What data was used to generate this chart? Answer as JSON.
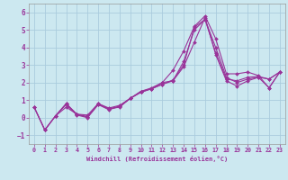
{
  "xlabel": "Windchill (Refroidissement éolien,°C)",
  "background_color": "#cce8f0",
  "grid_color": "#aaccdd",
  "line_color": "#993399",
  "xlim": [
    -0.5,
    23.5
  ],
  "ylim": [
    -1.5,
    6.5
  ],
  "yticks": [
    -1,
    0,
    1,
    2,
    3,
    4,
    5,
    6
  ],
  "xticks": [
    0,
    1,
    2,
    3,
    4,
    5,
    6,
    7,
    8,
    9,
    10,
    11,
    12,
    13,
    14,
    15,
    16,
    17,
    18,
    19,
    20,
    21,
    22,
    23
  ],
  "lines": [
    {
      "x": [
        0,
        1,
        2,
        3,
        4,
        5,
        6,
        7,
        8,
        9,
        10,
        11,
        12,
        13,
        14,
        15,
        16,
        17,
        18,
        19,
        20,
        21,
        22,
        23
      ],
      "y": [
        0.6,
        -0.7,
        0.1,
        0.8,
        0.2,
        0.05,
        0.8,
        0.5,
        0.6,
        1.1,
        1.5,
        1.7,
        2.0,
        2.7,
        3.8,
        5.2,
        5.8,
        4.5,
        2.5,
        2.5,
        2.6,
        2.4,
        1.7,
        2.6
      ]
    },
    {
      "x": [
        0,
        1,
        2,
        3,
        4,
        5,
        6,
        7,
        8,
        9,
        10,
        11,
        12,
        13,
        14,
        15,
        16,
        17,
        18,
        19,
        20,
        21,
        22,
        23
      ],
      "y": [
        0.6,
        -0.7,
        0.1,
        0.75,
        0.15,
        0.0,
        0.75,
        0.45,
        0.65,
        1.1,
        1.45,
        1.65,
        1.9,
        2.15,
        3.0,
        5.15,
        5.6,
        3.7,
        2.2,
        2.1,
        2.3,
        2.35,
        2.2,
        2.6
      ]
    },
    {
      "x": [
        0,
        1,
        2,
        3,
        4,
        5,
        6,
        7,
        8,
        9,
        10,
        11,
        12,
        13,
        14,
        15,
        16,
        17,
        18,
        19,
        20,
        21,
        22,
        23
      ],
      "y": [
        0.6,
        -0.7,
        0.1,
        0.8,
        0.18,
        0.05,
        0.75,
        0.5,
        0.65,
        1.1,
        1.5,
        1.65,
        2.0,
        2.1,
        3.2,
        5.0,
        5.6,
        4.0,
        2.3,
        2.0,
        2.2,
        2.3,
        1.7,
        2.6
      ]
    },
    {
      "x": [
        2,
        3,
        4,
        5,
        6,
        7,
        8,
        9,
        10,
        11,
        12,
        13,
        14,
        15,
        16,
        17,
        18,
        19,
        20,
        21,
        22,
        23
      ],
      "y": [
        0.1,
        0.6,
        0.2,
        0.15,
        0.8,
        0.55,
        0.7,
        1.1,
        1.45,
        1.65,
        1.9,
        2.1,
        2.9,
        4.3,
        5.7,
        3.6,
        2.1,
        1.8,
        2.1,
        2.3,
        2.2,
        2.6
      ]
    }
  ]
}
